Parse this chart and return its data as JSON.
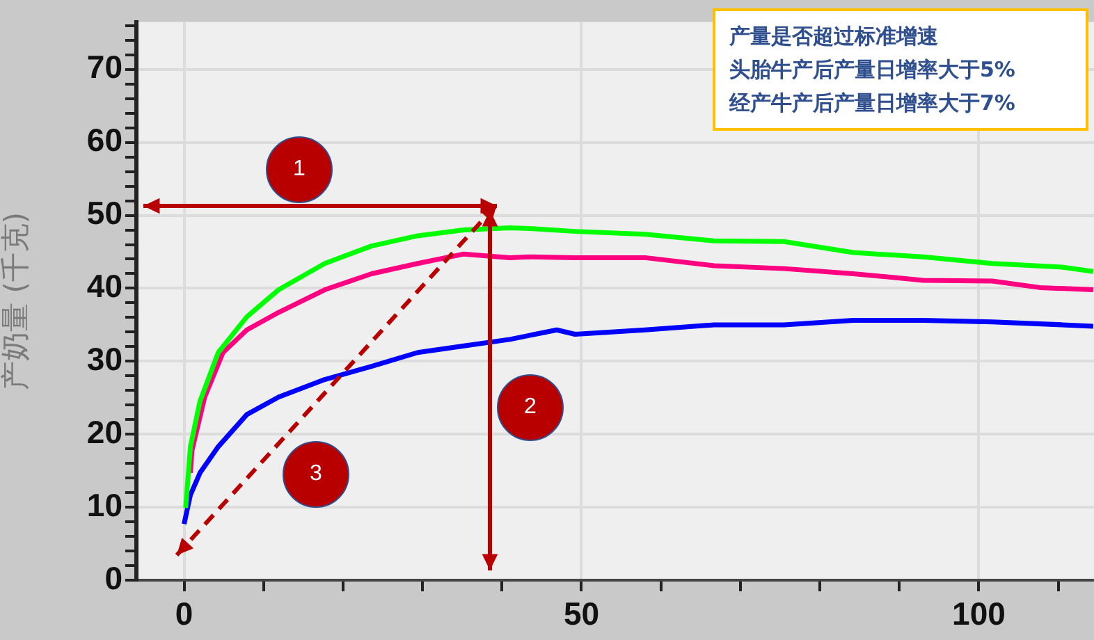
{
  "chart_data": {
    "type": "line",
    "ylabel": "产奶量 (千克)",
    "xlim": [
      -6,
      114.5
    ],
    "ylim": [
      0,
      76.5
    ],
    "xticks": [
      0,
      {
        "value": 10,
        "label": null
      },
      {
        "value": 20,
        "label": null
      },
      {
        "value": 30,
        "label": null
      },
      {
        "value": 40,
        "label": null
      },
      50,
      {
        "value": 60,
        "label": null
      },
      {
        "value": 70,
        "label": null
      },
      {
        "value": 80,
        "label": null
      },
      {
        "value": 90,
        "label": null
      },
      100,
      {
        "value": 110,
        "label": null
      }
    ],
    "yticks": [
      0,
      {
        "value": 2,
        "label": null
      },
      {
        "value": 4,
        "label": null
      },
      {
        "value": 6,
        "label": null
      },
      {
        "value": 8,
        "label": null
      },
      10,
      {
        "value": 12,
        "label": null
      },
      {
        "value": 14,
        "label": null
      },
      {
        "value": 16,
        "label": null
      },
      {
        "value": 18,
        "label": null
      },
      20,
      {
        "value": 22,
        "label": null
      },
      {
        "value": 24,
        "label": null
      },
      {
        "value": 26,
        "label": null
      },
      {
        "value": 28,
        "label": null
      },
      30,
      {
        "value": 32,
        "label": null
      },
      {
        "value": 34,
        "label": null
      },
      {
        "value": 36,
        "label": null
      },
      {
        "value": 38,
        "label": null
      },
      40,
      {
        "value": 42,
        "label": null
      },
      {
        "value": 44,
        "label": null
      },
      {
        "value": 46,
        "label": null
      },
      {
        "value": 48,
        "label": null
      },
      50,
      {
        "value": 52,
        "label": null
      },
      {
        "value": 54,
        "label": null
      },
      {
        "value": 56,
        "label": null
      },
      {
        "value": 58,
        "label": null
      },
      60,
      {
        "value": 62,
        "label": null
      },
      {
        "value": 64,
        "label": null
      },
      {
        "value": 66,
        "label": null
      },
      {
        "value": 68,
        "label": null
      },
      70,
      {
        "value": 72,
        "label": null
      },
      {
        "value": 74,
        "label": null
      },
      {
        "value": 76,
        "label": null
      }
    ],
    "grid": true,
    "legend": false,
    "annotations": [
      "1",
      "2",
      "3",
      "产量是否超过标准增速",
      "头胎牛产后产量日增率大于5%",
      "经产牛产后产量日增率大于7%"
    ],
    "series": [
      {
        "color": "#00ff00",
        "x": [
          0.2,
          0.8,
          2,
          4.3,
          7.9,
          11.9,
          17.7,
          23.6,
          29.4,
          35.2,
          41,
          43.4,
          49.2,
          58,
          66.7,
          75.5,
          84.2,
          93,
          101.7,
          110.5,
          114.4
        ],
        "values": [
          9.9,
          18.3,
          24.5,
          31.2,
          36.1,
          39.8,
          43.4,
          45.8,
          47.2,
          48,
          48.3,
          48.2,
          47.8,
          47.4,
          46.5,
          46.4,
          44.9,
          44.3,
          43.4,
          42.9,
          42.3
        ]
      },
      {
        "color": "#ff0080",
        "x": [
          0.8,
          1,
          2.6,
          4.9,
          7.9,
          11.9,
          17.7,
          23.6,
          29.4,
          35.2,
          41,
          43.4,
          49.2,
          58,
          66.7,
          75.5,
          84.2,
          93,
          101.7,
          107.7,
          114.4
        ],
        "values": [
          14.7,
          17.8,
          25.1,
          31.2,
          34.3,
          36.7,
          39.8,
          42,
          43.4,
          44.7,
          44.2,
          44.3,
          44.2,
          44.2,
          43.1,
          42.7,
          42,
          41.1,
          41,
          40.1,
          39.8
        ]
      },
      {
        "color": "#0000ff",
        "x": [
          0,
          0.8,
          2,
          4.3,
          7.9,
          11.9,
          17.7,
          23.6,
          29.4,
          35.2,
          41,
          46.9,
          49.2,
          58,
          66.7,
          75.5,
          84.2,
          93,
          101.7,
          110.5,
          114.4
        ],
        "values": [
          7.7,
          11.7,
          14.7,
          18.3,
          22.7,
          25.1,
          27.5,
          29.3,
          31.2,
          32.1,
          33,
          34.3,
          33.7,
          34.3,
          35,
          35,
          35.6,
          35.6,
          35.4,
          35,
          34.8
        ]
      }
    ]
  }
}
